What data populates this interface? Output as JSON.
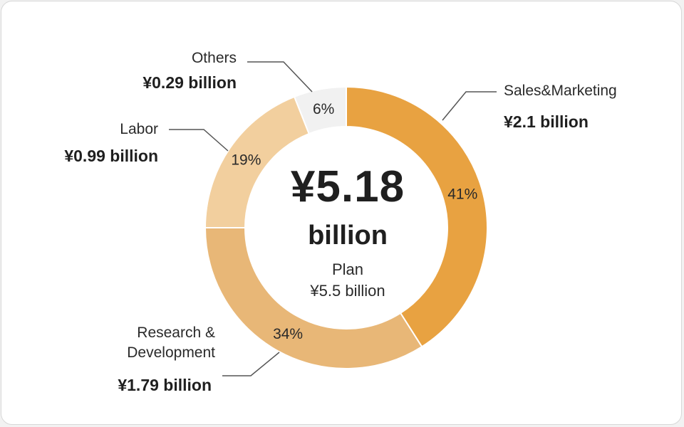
{
  "chart_data": {
    "type": "pie",
    "total": "¥5.18",
    "total_unit": "billion",
    "plan_label": "Plan",
    "plan_value": "¥5.5 billion",
    "colors": {
      "sales_marketing": "#e8a241",
      "research_development": "#e8b777",
      "labor": "#f2cf9e",
      "others": "#f1f1f1"
    },
    "slices": [
      {
        "name": "Sales&Marketing",
        "percent": 41,
        "pct_label": "41%",
        "amount": "¥2.1 billion",
        "color": "#e8a241"
      },
      {
        "name": "Research & Development",
        "percent": 34,
        "pct_label": "34%",
        "amount": "¥1.79 billion",
        "color": "#e8b777"
      },
      {
        "name": "Labor",
        "percent": 19,
        "pct_label": "19%",
        "amount": "¥0.99 billion",
        "color": "#f2cf9e"
      },
      {
        "name": "Others",
        "percent": 6,
        "pct_label": "6%",
        "amount": "¥0.29 billion",
        "color": "#f1f1f1"
      }
    ]
  }
}
